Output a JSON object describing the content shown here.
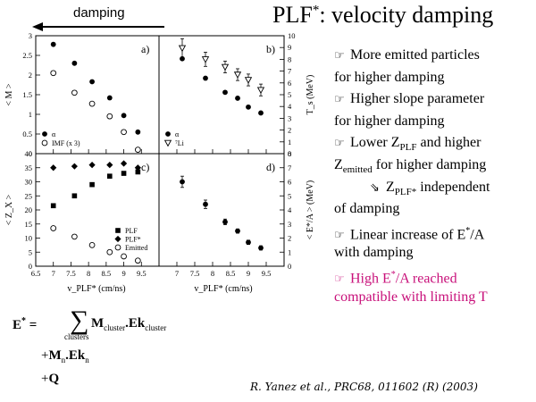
{
  "header": {
    "damping_label": "damping",
    "title_main": "PLF",
    "title_sup": "*",
    "title_rest": ": velocity damping"
  },
  "figure": {
    "panels": [
      {
        "id": "a",
        "label": "a)",
        "ylabel": "< M >",
        "yaxis_side": "left",
        "yticks": [
          "0",
          "0.5",
          "1",
          "1.5",
          "2",
          "2.5",
          "3"
        ],
        "legend": [
          {
            "marker": "filled-circle",
            "text": "α"
          },
          {
            "marker": "open-circle",
            "text": "IMF (x 3)"
          }
        ]
      },
      {
        "id": "b",
        "label": "b)",
        "ylabel": "T_s (MeV)",
        "yaxis_side": "right",
        "yticks": [
          "0",
          "1",
          "2",
          "3",
          "4",
          "5",
          "6",
          "7",
          "8",
          "9",
          "10"
        ],
        "legend": [
          {
            "marker": "filled-circle",
            "text": "α"
          },
          {
            "marker": "open-triangle",
            "text": "⁷Li"
          }
        ]
      },
      {
        "id": "c",
        "label": "c)",
        "ylabel": "< Z_X >",
        "yaxis_side": "left",
        "yticks": [
          "0",
          "5",
          "10",
          "15",
          "20",
          "25",
          "30",
          "35",
          "40"
        ],
        "legend": [
          {
            "marker": "filled-square",
            "text": "PLF"
          },
          {
            "marker": "filled-diamond",
            "text": "PLF*"
          },
          {
            "marker": "open-circle",
            "text": "Emitted"
          }
        ]
      },
      {
        "id": "d",
        "label": "d)",
        "ylabel": "< E*/A > (MeV)",
        "yaxis_side": "right",
        "yticks": [
          "0",
          "1",
          "2",
          "3",
          "4",
          "5",
          "6",
          "7",
          "8"
        ],
        "legend": []
      }
    ],
    "xlabel_left": "v_PLF*  (cm/ns)",
    "xlabel_right": "v_PLF*  (cm/ns)",
    "xticks_left": [
      "6.5",
      "7",
      "7.5",
      "8",
      "8.5",
      "9",
      "9.5"
    ],
    "xticks_right": [
      "7",
      "7.5",
      "8",
      "8.5",
      "9",
      "9.5"
    ]
  },
  "chart_data": [
    {
      "type": "scatter",
      "panel": "a",
      "xlim": [
        6.5,
        10
      ],
      "ylim": [
        0,
        3
      ],
      "ylabel": "< M >",
      "legend": "bottom-left",
      "series": [
        {
          "name": "α",
          "marker": "filled-circle",
          "x": [
            7.0,
            7.6,
            8.1,
            8.6,
            9.0,
            9.4
          ],
          "y": [
            2.78,
            2.3,
            1.83,
            1.42,
            0.97,
            0.55
          ]
        },
        {
          "name": "IMF (x 3)",
          "marker": "open-circle",
          "x": [
            7.0,
            7.6,
            8.1,
            8.6,
            9.0,
            9.4
          ],
          "y": [
            2.05,
            1.55,
            1.27,
            0.95,
            0.55,
            0.1
          ]
        }
      ]
    },
    {
      "type": "scatter",
      "panel": "b",
      "xlim": [
        6.5,
        10
      ],
      "ylim": [
        0,
        10
      ],
      "ylabel": "T_s (MeV)",
      "legend": "bottom-left",
      "series": [
        {
          "name": "α",
          "marker": "filled-circle",
          "x": [
            7.15,
            7.8,
            8.35,
            8.7,
            9.0,
            9.35
          ],
          "y": [
            8.05,
            6.4,
            5.2,
            4.7,
            3.95,
            3.45
          ]
        },
        {
          "name": "⁷Li",
          "marker": "open-triangle",
          "x": [
            7.15,
            7.8,
            8.35,
            8.7,
            9.0,
            9.35
          ],
          "y": [
            8.95,
            8.0,
            7.35,
            6.7,
            6.25,
            5.4
          ],
          "y_error": [
            0.8,
            0.6,
            0.5,
            0.5,
            0.5,
            0.5
          ]
        }
      ]
    },
    {
      "type": "scatter",
      "panel": "c",
      "xlim": [
        6.5,
        10
      ],
      "ylim": [
        0,
        40
      ],
      "ylabel": "< Z_X >",
      "legend": "bottom-right",
      "series": [
        {
          "name": "PLF",
          "marker": "filled-square",
          "x": [
            7.0,
            7.6,
            8.1,
            8.6,
            9.0,
            9.4
          ],
          "y": [
            21.5,
            25,
            29,
            32,
            33,
            33.5
          ]
        },
        {
          "name": "PLF*",
          "marker": "filled-diamond",
          "x": [
            7.0,
            7.6,
            8.1,
            8.6,
            9.0,
            9.4
          ],
          "y": [
            35,
            35.5,
            36,
            36,
            36.5,
            35
          ]
        },
        {
          "name": "Emitted",
          "marker": "open-circle",
          "x": [
            7.0,
            7.6,
            8.1,
            8.6,
            9.0,
            9.4
          ],
          "y": [
            13.5,
            10.5,
            7.5,
            5,
            3.5,
            2
          ]
        }
      ]
    },
    {
      "type": "scatter",
      "panel": "d",
      "xlim": [
        6.5,
        10
      ],
      "ylim": [
        0,
        8
      ],
      "ylabel": "< E*/A > (MeV)",
      "series": [
        {
          "name": "",
          "marker": "filled-circle",
          "x": [
            7.15,
            7.8,
            8.35,
            8.7,
            9.0,
            9.35
          ],
          "y": [
            6.0,
            4.4,
            3.15,
            2.5,
            1.7,
            1.3
          ],
          "y_error": [
            0.4,
            0.3,
            0.2,
            0.15,
            0.15,
            0.15
          ]
        }
      ]
    }
  ],
  "bullets": [
    {
      "icon": "☞",
      "text": "More emitted particles"
    },
    {
      "text": "for higher damping"
    },
    {
      "icon": "☞",
      "text": "Higher slope parameter"
    },
    {
      "text": "for higher damping"
    },
    {
      "icon": "☞",
      "text": "Lower Z",
      "sub": "PLF",
      "rest": " and higher"
    },
    {
      "text": "Z",
      "sub": "emitted",
      "rest": " for higher damping"
    },
    {
      "icon": "⇘",
      "text": "Z",
      "sub": "PLF*",
      "rest": " independent"
    },
    {
      "text": "of damping"
    },
    {
      "icon": "☞",
      "text": "Linear increase of E",
      "sup": "*",
      "rest": "/A"
    },
    {
      "text": "with damping"
    },
    {
      "icon": "☞",
      "text": "High E",
      "sup": "*",
      "rest": "/A reached",
      "color": "pink"
    },
    {
      "text": "compatible with limiting T",
      "color": "pink"
    }
  ],
  "equation": {
    "lhs": "E",
    "lhs_sup": "*",
    "equals": " = ",
    "sum_symbol": "∑",
    "sum_sub": "clusters",
    "term1": "M",
    "term1_sub": "cluster",
    "dot": ".",
    "term1b": "Ek",
    "term1b_sub": "cluster",
    "plus": "+",
    "term2": "M",
    "term2_sub": "n",
    "term2b": "Ek",
    "term2b_sub": "n",
    "term3": "Q"
  },
  "citation": "R. Yanez et al., PRC68, 011602 (R) (2003)"
}
